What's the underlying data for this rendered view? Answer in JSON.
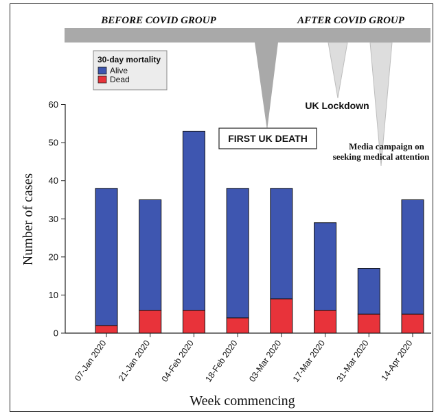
{
  "chart_data": {
    "type": "bar",
    "stacked": true,
    "categories": [
      "07-Jan 2020",
      "21-Jan 2020",
      "04-Feb 2020",
      "18-Feb 2020",
      "03-Mar 2020",
      "17-Mar 2020",
      "31-Mar 2020",
      "14-Apr 2020"
    ],
    "series": [
      {
        "name": "Dead",
        "color": "#e8333a",
        "values": [
          2,
          6,
          6,
          4,
          9,
          6,
          5,
          5
        ]
      },
      {
        "name": "Alive",
        "color": "#3e56b0",
        "values": [
          36,
          29,
          47,
          34,
          29,
          23,
          12,
          30
        ]
      }
    ],
    "totals": [
      38,
      35,
      53,
      38,
      38,
      29,
      17,
      35
    ],
    "xlabel": "Week commencing",
    "ylabel": "Number of cases",
    "ylim": [
      0,
      60
    ],
    "yticks": [
      "0",
      "10",
      "20",
      "30",
      "40",
      "50",
      "60"
    ],
    "legend": {
      "title": "30-day mortality",
      "position": "top-left",
      "entries": [
        "Alive",
        "Dead"
      ]
    },
    "grid": false,
    "groups": {
      "before": "BEFORE COVID GROUP",
      "after": "AFTER COVID GROUP"
    },
    "annotations": {
      "first_death": "FIRST UK DEATH",
      "lockdown": "UK Lockdown",
      "media_line1": "Media campaign on",
      "media_line2": "seeking medical attention"
    }
  }
}
